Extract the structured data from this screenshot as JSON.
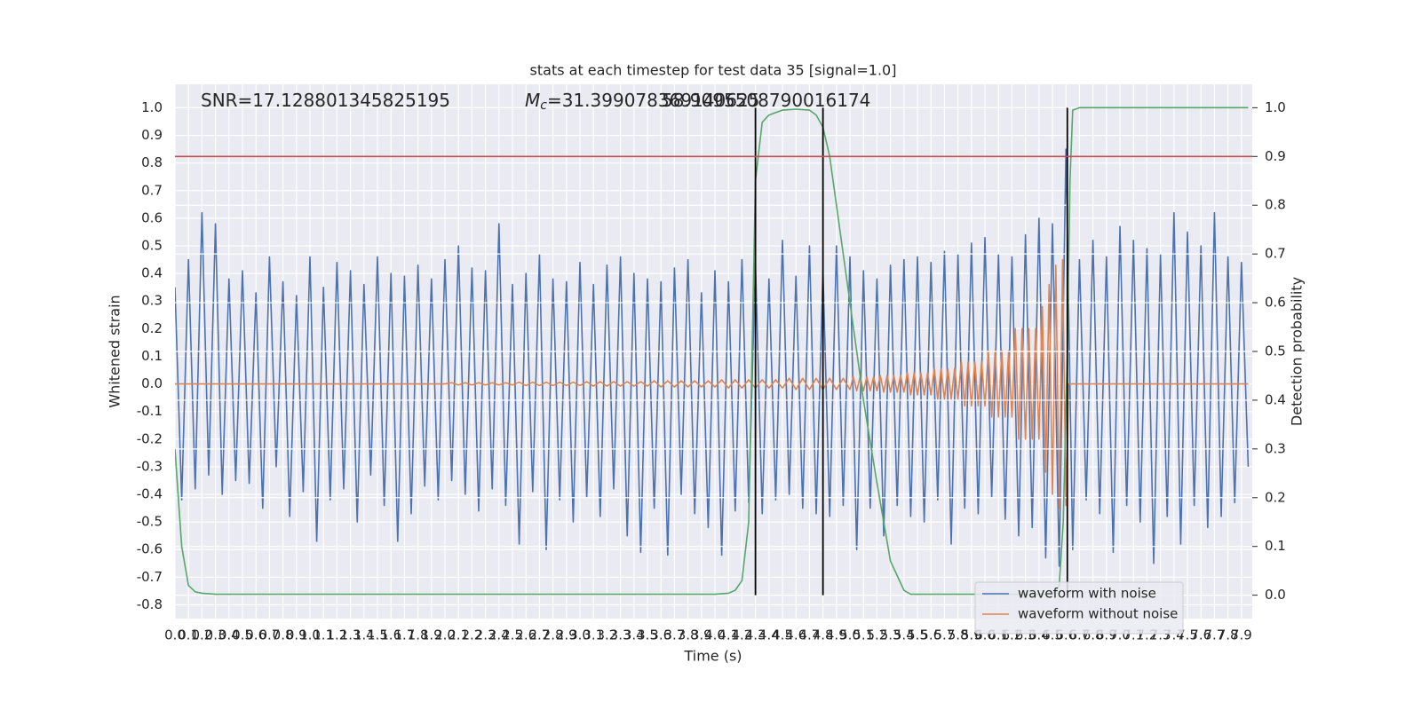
{
  "chart_data": {
    "type": "line",
    "title": "stats at each timestep for test data 35 [signal=1.0]",
    "xlabel": "Time (s)",
    "ylabel": "Whitened strain",
    "y2label": "Detection probability",
    "annotations": [
      {
        "text": "SNR=17.128801345825195"
      },
      {
        "symbol": "M",
        "subscript": "c",
        "text": "=31.399078369140625"
      },
      {
        "text": "58.9095508790016174"
      }
    ],
    "xlim": [
      0,
      7.98
    ],
    "ylim": [
      -0.85,
      1.085
    ],
    "y2lim": [
      -0.048,
      1.048
    ],
    "grid": true,
    "legend": "lower right",
    "xticks": [
      {
        "value": 0,
        "label": "0.0"
      },
      0.1,
      0.2,
      0.3,
      0.4,
      0.5,
      0.6,
      0.7,
      0.8,
      0.9,
      {
        "value": 1,
        "label": "1.0"
      },
      1.1,
      1.2,
      1.3,
      1.4,
      1.5,
      1.6,
      1.7,
      1.8,
      1.9,
      {
        "value": 2,
        "label": "2.0"
      },
      2.1,
      2.2,
      2.3,
      2.4,
      2.5,
      2.6,
      2.7,
      2.8,
      2.9,
      {
        "value": 3,
        "label": "3.0"
      },
      3.1,
      3.2,
      3.3,
      3.4,
      3.5,
      3.6,
      3.7,
      3.8,
      3.9,
      {
        "value": 4,
        "label": "4.0"
      },
      4.1,
      4.2,
      4.3,
      4.4,
      4.5,
      4.6,
      4.7,
      4.8,
      4.9,
      {
        "value": 5,
        "label": "5.0"
      },
      5.1,
      5.2,
      5.3,
      5.4,
      5.5,
      5.6,
      5.7,
      5.8,
      5.9,
      {
        "value": 6,
        "label": "6.0"
      },
      6.1,
      6.2,
      6.3,
      6.4,
      6.5,
      6.6,
      6.7,
      6.8,
      6.9,
      {
        "value": 7,
        "label": "7.0"
      },
      7.1,
      7.2,
      7.3,
      7.4,
      7.5,
      7.6,
      7.7,
      7.8,
      7.9
    ],
    "yticks": [
      -0.8,
      -0.7,
      -0.6,
      -0.5,
      -0.4,
      -0.3,
      -0.2,
      -0.1,
      {
        "value": 0,
        "label": "0.0"
      },
      0.1,
      0.2,
      0.3,
      0.4,
      0.5,
      0.6,
      0.7,
      0.8,
      0.9,
      {
        "value": 1,
        "label": "1.0"
      }
    ],
    "y2ticks": [
      {
        "value": 0,
        "label": "0.0"
      },
      0.1,
      0.2,
      0.3,
      0.4,
      0.5,
      0.6,
      0.7,
      0.8,
      0.9,
      {
        "value": 1,
        "label": "1.0"
      }
    ],
    "series": [
      {
        "name": "waveform with noise",
        "color": "#4c72b0",
        "x": [
          0,
          0.05,
          0.1,
          0.15,
          0.2,
          0.25,
          0.3,
          0.35,
          0.4,
          0.45,
          0.5,
          0.55,
          0.6,
          0.65,
          0.7,
          0.75,
          0.8,
          0.85,
          0.9,
          0.95,
          1,
          1.05,
          1.1,
          1.15,
          1.2,
          1.25,
          1.3,
          1.35,
          1.4,
          1.45,
          1.5,
          1.55,
          1.6,
          1.65,
          1.7,
          1.75,
          1.8,
          1.85,
          1.9,
          1.95,
          2,
          2.05,
          2.1,
          2.15,
          2.2,
          2.25,
          2.3,
          2.35,
          2.4,
          2.45,
          2.5,
          2.55,
          2.6,
          2.65,
          2.7,
          2.75,
          2.8,
          2.85,
          2.9,
          2.95,
          3,
          3.05,
          3.1,
          3.15,
          3.2,
          3.25,
          3.3,
          3.35,
          3.4,
          3.45,
          3.5,
          3.55,
          3.6,
          3.65,
          3.7,
          3.75,
          3.8,
          3.85,
          3.9,
          3.95,
          4,
          4.05,
          4.1,
          4.15,
          4.2,
          4.25,
          4.3,
          4.35,
          4.4,
          4.45,
          4.5,
          4.55,
          4.6,
          4.65,
          4.7,
          4.75,
          4.8,
          4.85,
          4.9,
          4.95,
          5,
          5.05,
          5.1,
          5.15,
          5.2,
          5.25,
          5.3,
          5.35,
          5.4,
          5.45,
          5.5,
          5.55,
          5.6,
          5.65,
          5.7,
          5.75,
          5.8,
          5.85,
          5.9,
          5.95,
          6,
          6.05,
          6.1,
          6.15,
          6.2,
          6.25,
          6.3,
          6.35,
          6.4,
          6.45,
          6.5,
          6.55,
          6.6,
          6.65,
          6.7,
          6.75,
          6.8,
          6.85,
          6.9,
          6.95,
          7,
          7.05,
          7.1,
          7.15,
          7.2,
          7.25,
          7.3,
          7.35,
          7.4,
          7.45,
          7.5,
          7.55,
          7.6,
          7.65,
          7.7,
          7.75,
          7.8,
          7.85,
          7.9,
          7.95
        ],
        "values": [
          0.35,
          -0.42,
          0.45,
          -0.38,
          0.62,
          -0.33,
          0.58,
          -0.4,
          0.38,
          -0.35,
          0.41,
          -0.36,
          0.33,
          -0.45,
          0.46,
          -0.3,
          0.37,
          -0.48,
          0.32,
          -0.39,
          0.46,
          -0.57,
          0.35,
          -0.42,
          0.44,
          -0.38,
          0.41,
          -0.5,
          0.36,
          -0.33,
          0.46,
          -0.44,
          0.4,
          -0.57,
          0.39,
          -0.47,
          0.43,
          -0.37,
          0.38,
          -0.42,
          0.45,
          -0.35,
          0.5,
          -0.4,
          0.42,
          -0.46,
          0.41,
          -0.38,
          0.58,
          -0.44,
          0.36,
          -0.58,
          0.4,
          -0.39,
          0.47,
          -0.6,
          0.38,
          -0.42,
          0.37,
          -0.5,
          0.44,
          -0.41,
          0.36,
          -0.48,
          0.43,
          -0.38,
          0.46,
          -0.55,
          0.4,
          -0.61,
          0.38,
          -0.45,
          0.37,
          -0.62,
          0.42,
          -0.4,
          0.45,
          -0.47,
          0.33,
          -0.52,
          0.41,
          -0.62,
          0.37,
          -0.46,
          0.45,
          -0.43,
          0.44,
          -0.47,
          0.38,
          -0.42,
          0.52,
          -0.4,
          0.39,
          -0.45,
          0.5,
          -0.47,
          0.41,
          -0.48,
          0.5,
          -0.44,
          0.46,
          -0.6,
          0.41,
          -0.45,
          0.38,
          -0.55,
          0.43,
          -0.44,
          0.45,
          -0.48,
          0.46,
          -0.5,
          0.44,
          -0.42,
          0.48,
          -0.58,
          0.47,
          -0.45,
          0.51,
          -0.47,
          0.53,
          -0.41,
          0.47,
          -0.49,
          0.46,
          -0.55,
          0.54,
          -0.52,
          0.6,
          -0.63,
          0.58,
          -0.66,
          0.85,
          -0.6,
          0.45,
          -0.42,
          0.52,
          -0.47,
          0.46,
          -0.61,
          0.57,
          -0.44,
          0.52,
          -0.5,
          0.49,
          -0.65,
          0.47,
          -0.48,
          0.62,
          -0.58,
          0.55,
          -0.44,
          0.5,
          -0.52,
          0.62,
          -0.48,
          0.46,
          -0.43,
          0.44,
          -0.3
        ]
      },
      {
        "name": "waveform without noise",
        "color": "#dd8452",
        "x": [
          0,
          2,
          2.05,
          2.1,
          2.15,
          2.2,
          2.25,
          2.3,
          2.35,
          2.4,
          2.45,
          2.5,
          2.55,
          2.6,
          2.65,
          2.7,
          2.75,
          2.8,
          2.85,
          2.9,
          2.95,
          3,
          3.05,
          3.1,
          3.15,
          3.2,
          3.25,
          3.3,
          3.35,
          3.4,
          3.45,
          3.5,
          3.55,
          3.6,
          3.65,
          3.7,
          3.75,
          3.8,
          3.85,
          3.9,
          3.95,
          4,
          4.05,
          4.1,
          4.15,
          4.2,
          4.25,
          4.3,
          4.35,
          4.4,
          4.45,
          4.5,
          4.55,
          4.6,
          4.65,
          4.7,
          4.75,
          4.8,
          4.85,
          4.9,
          4.95,
          5,
          5.025,
          5.05,
          5.075,
          5.1,
          5.125,
          5.15,
          5.175,
          5.2,
          5.225,
          5.25,
          5.275,
          5.3,
          5.325,
          5.35,
          5.375,
          5.4,
          5.425,
          5.45,
          5.475,
          5.5,
          5.525,
          5.55,
          5.575,
          5.6,
          5.625,
          5.65,
          5.675,
          5.7,
          5.725,
          5.75,
          5.775,
          5.8,
          5.825,
          5.85,
          5.875,
          5.9,
          5.925,
          5.95,
          5.975,
          6,
          6.025,
          6.05,
          6.075,
          6.1,
          6.125,
          6.15,
          6.175,
          6.2,
          6.225,
          6.25,
          6.275,
          6.3,
          6.325,
          6.35,
          6.375,
          6.4,
          6.425,
          6.45,
          6.475,
          6.5,
          6.525,
          6.55,
          6.575,
          6.6,
          6.62,
          7.95
        ],
        "values": [
          0,
          0,
          0.004,
          -0.004,
          0.004,
          -0.004,
          0.004,
          -0.004,
          0.004,
          -0.004,
          0.004,
          -0.004,
          0.006,
          -0.006,
          0.006,
          -0.006,
          0.006,
          -0.006,
          0.006,
          -0.006,
          0.006,
          -0.006,
          0.008,
          -0.008,
          0.008,
          -0.008,
          0.008,
          -0.008,
          0.008,
          -0.008,
          0.008,
          -0.008,
          0.011,
          -0.011,
          0.011,
          -0.011,
          0.011,
          -0.011,
          0.011,
          -0.011,
          0.011,
          -0.011,
          0.015,
          -0.015,
          0.015,
          -0.015,
          0.015,
          -0.015,
          0.015,
          -0.015,
          0.015,
          -0.015,
          0.02,
          -0.02,
          0.02,
          -0.02,
          0.02,
          -0.02,
          0.02,
          -0.02,
          0.02,
          -0.02,
          0.025,
          -0.025,
          0.025,
          -0.025,
          0.025,
          -0.025,
          0.025,
          -0.025,
          0.03,
          -0.03,
          0.03,
          -0.03,
          0.03,
          -0.03,
          0.03,
          -0.03,
          0.04,
          -0.04,
          0.04,
          -0.04,
          0.04,
          -0.04,
          0.04,
          -0.04,
          0.055,
          -0.055,
          0.055,
          -0.055,
          0.055,
          -0.055,
          0.055,
          -0.055,
          0.08,
          -0.08,
          0.08,
          -0.08,
          0.08,
          -0.08,
          0.08,
          -0.08,
          0.12,
          -0.12,
          0.12,
          -0.12,
          0.12,
          -0.12,
          0.12,
          -0.12,
          0.2,
          -0.2,
          0.2,
          -0.2,
          0.2,
          -0.2,
          0.2,
          -0.2,
          0.28,
          -0.32,
          0.36,
          -0.4,
          0.43,
          -0.45,
          0.45,
          -0.44,
          0,
          0
        ]
      },
      {
        "color": "#55a868",
        "axis": "y2",
        "x": [
          0,
          0.05,
          0.1,
          0.15,
          0.2,
          0.3,
          4,
          4.1,
          4.15,
          4.2,
          4.25,
          4.3,
          4.35,
          4.4,
          4.5,
          4.6,
          4.7,
          4.75,
          4.8,
          4.85,
          4.9,
          5,
          5.1,
          5.2,
          5.3,
          5.4,
          5.45,
          6.5,
          6.55,
          6.58,
          6.61,
          6.63,
          6.65,
          6.7,
          7.95
        ],
        "values": [
          0.3,
          0.1,
          0.02,
          0.007,
          0.004,
          0.002,
          0.002,
          0.004,
          0.01,
          0.03,
          0.15,
          0.85,
          0.97,
          0.985,
          0.995,
          0.997,
          0.995,
          0.985,
          0.96,
          0.9,
          0.8,
          0.6,
          0.4,
          0.23,
          0.07,
          0.01,
          0.002,
          0.002,
          0.02,
          0.15,
          0.5,
          0.85,
          0.995,
          1,
          1
        ]
      }
    ],
    "vlines": {
      "x": [
        4.3,
        4.8,
        6.61
      ],
      "color": "#000000"
    },
    "threshold": {
      "value": 0.9,
      "axis": "y2",
      "color": "#c44e52"
    }
  }
}
